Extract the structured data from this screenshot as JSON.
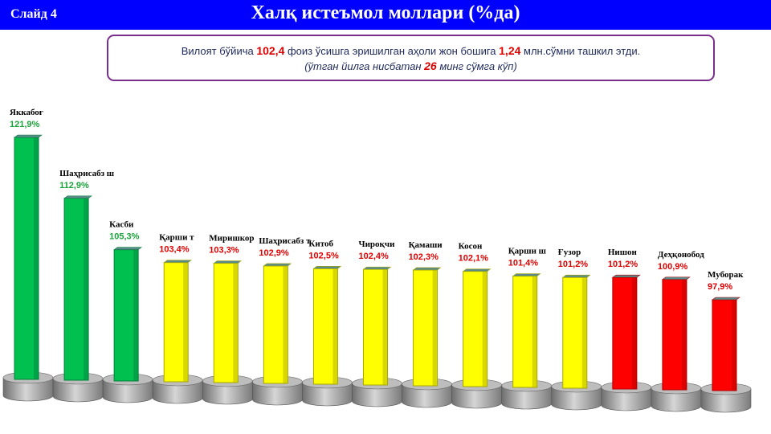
{
  "header": {
    "slide_label": "Слайд 4",
    "title": "Халқ истеъмол моллари (%да)"
  },
  "info": {
    "line1_pre": "Вилоят бўйича ",
    "line1_val1": "102,4",
    "line1_mid": " фоиз ўсишга эришилган аҳоли жон бошига ",
    "line1_val2": "1,24",
    "line1_post": " млн.сўмни ташкил этди.",
    "line2_pre": "(ўтган йилга нисбатан ",
    "line2_val": "26",
    "line2_post": " минг сўмга кўп)"
  },
  "colors": {
    "header_bg": "#0000ff",
    "green": "#00c050",
    "yellow": "#ffff00",
    "red": "#ff0000",
    "value_green": "#1aa33a",
    "value_red": "#e00000"
  },
  "chart_data": {
    "type": "bar",
    "title": "Халқ истеъмол моллари (%да)",
    "categories": [
      "Яккабоғ",
      "Шаҳрисабз ш",
      "Касби",
      "Қарши т",
      "Миришкор",
      "Шаҳрисабз т",
      "Китоб",
      "Чироқчи",
      "Қамаши",
      "Косон",
      "Қарши ш",
      "Ғузор",
      "Нишон",
      "Деҳқонобод",
      "Муборак"
    ],
    "values": [
      121.9,
      112.9,
      105.3,
      103.4,
      103.3,
      102.9,
      102.5,
      102.4,
      102.3,
      102.1,
      101.4,
      101.2,
      101.2,
      100.9,
      97.9
    ],
    "value_labels": [
      "121,9%",
      "112,9%",
      "105,3%",
      "103,4%",
      "103,3%",
      "102,9%",
      "102,5%",
      "102,4%",
      "102,3%",
      "102,1%",
      "101,4%",
      "101,2%",
      "101,2%",
      "100,9%",
      "97,9%"
    ],
    "bar_colors": [
      "green",
      "green",
      "green",
      "yellow",
      "yellow",
      "yellow",
      "yellow",
      "yellow",
      "yellow",
      "yellow",
      "yellow",
      "yellow",
      "red",
      "red",
      "red"
    ],
    "xlabel": "",
    "ylabel": "",
    "grid": false,
    "legend": "none"
  }
}
